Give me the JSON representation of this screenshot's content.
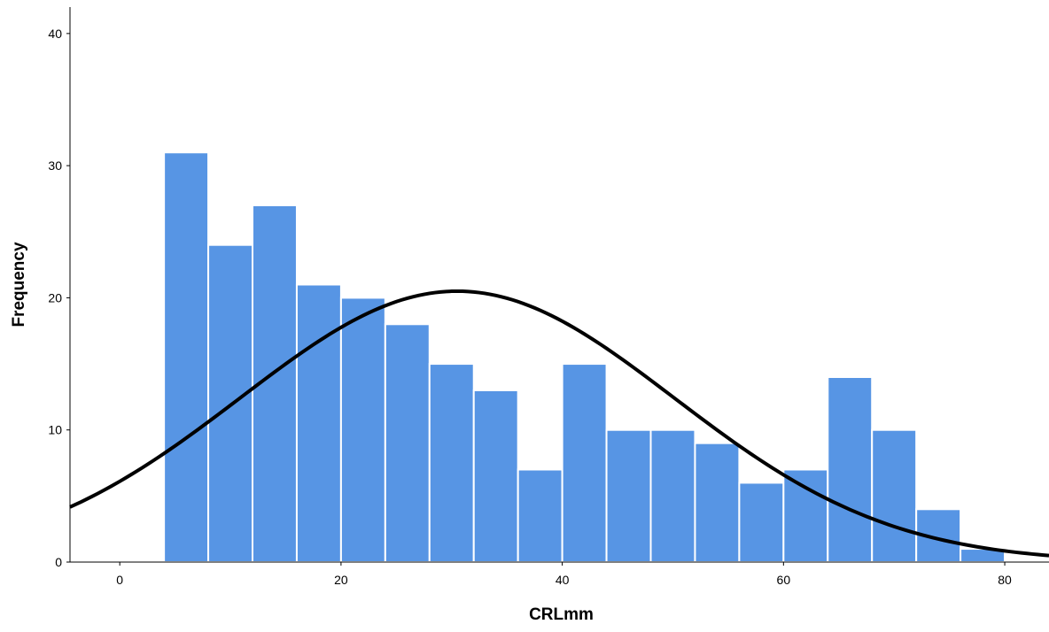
{
  "chart_data": {
    "type": "bar",
    "subtype": "histogram",
    "title": "",
    "xlabel": "CRLmm",
    "ylabel": "Frequency",
    "xlim": [
      -4.5,
      84
    ],
    "ylim": [
      0,
      42
    ],
    "x_ticks": [
      0,
      20,
      40,
      60,
      80
    ],
    "y_ticks": [
      0,
      10,
      20,
      30,
      40
    ],
    "grid": false,
    "bin_width": 4,
    "bins": [
      {
        "start": 4,
        "end": 8,
        "count": 31
      },
      {
        "start": 8,
        "end": 12,
        "count": 24
      },
      {
        "start": 12,
        "end": 16,
        "count": 27
      },
      {
        "start": 16,
        "end": 20,
        "count": 21
      },
      {
        "start": 20,
        "end": 24,
        "count": 20
      },
      {
        "start": 24,
        "end": 28,
        "count": 18
      },
      {
        "start": 28,
        "end": 32,
        "count": 15
      },
      {
        "start": 32,
        "end": 36,
        "count": 13
      },
      {
        "start": 36,
        "end": 40,
        "count": 7
      },
      {
        "start": 40,
        "end": 44,
        "count": 15
      },
      {
        "start": 44,
        "end": 48,
        "count": 10
      },
      {
        "start": 48,
        "end": 52,
        "count": 10
      },
      {
        "start": 52,
        "end": 56,
        "count": 9
      },
      {
        "start": 56,
        "end": 60,
        "count": 6
      },
      {
        "start": 60,
        "end": 64,
        "count": 7
      },
      {
        "start": 64,
        "end": 68,
        "count": 14
      },
      {
        "start": 68,
        "end": 72,
        "count": 10
      },
      {
        "start": 72,
        "end": 76,
        "count": 4
      },
      {
        "start": 76,
        "end": 80,
        "count": 1
      }
    ],
    "normal_curve": {
      "mean": 30.5,
      "std_dev": 19.6,
      "peak_frequency": 20.5
    },
    "colors": {
      "bars": "#5795e4",
      "bar_edge": "#ffffff",
      "curve": "#000000",
      "axis": "#000000"
    }
  }
}
